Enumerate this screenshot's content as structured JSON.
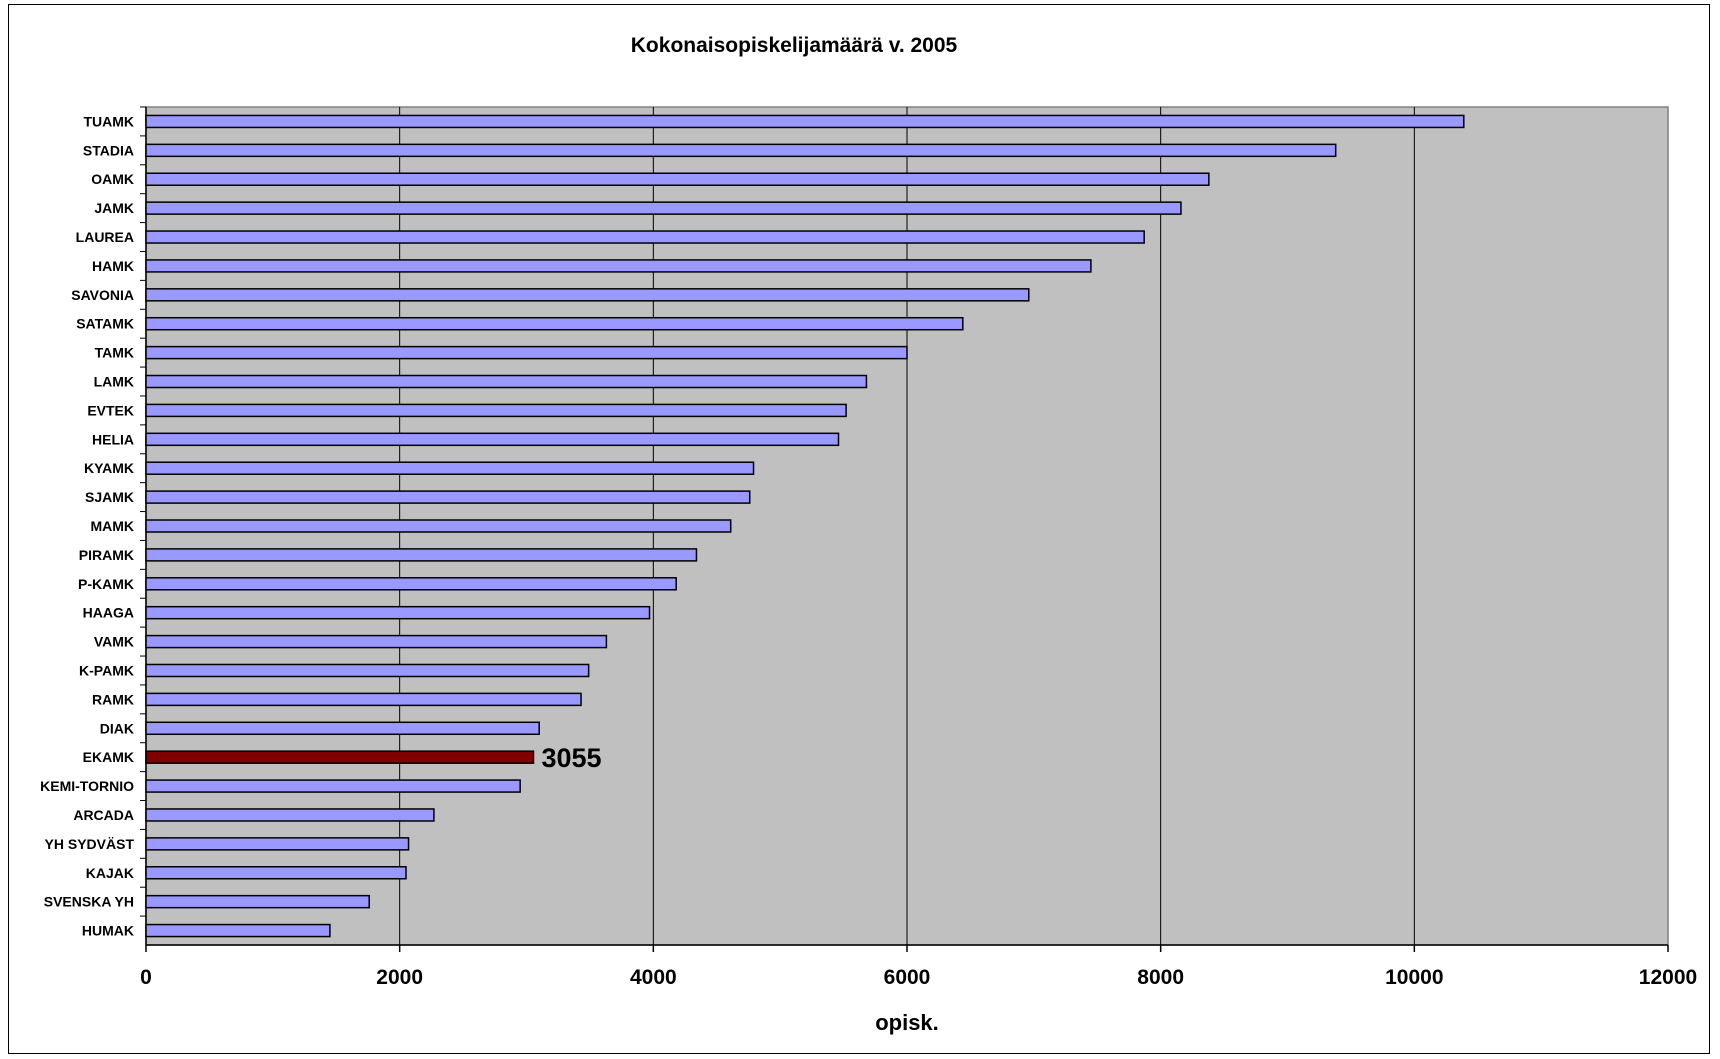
{
  "chart_data": {
    "type": "bar",
    "orientation": "horizontal",
    "title": "Kokonaisopiskelijamäärä v. 2005",
    "xlabel": "opisk.",
    "ylabel": "",
    "xlim": [
      0,
      12000
    ],
    "xticks": [
      "0",
      "2000",
      "4000",
      "6000",
      "8000",
      "10000",
      "12000"
    ],
    "grid": "vertical",
    "plot_background": "#c0c0c0",
    "bar_color": "#9999ff",
    "highlight_color": "#800000",
    "highlight_category": "EKAMK",
    "categories": [
      "TUAMK",
      "STADIA",
      "OAMK",
      "JAMK",
      "LAUREA",
      "HAMK",
      "SAVONIA",
      "SATAMK",
      "TAMK",
      "LAMK",
      "EVTEK",
      "HELIA",
      "KYAMK",
      "SJAMK",
      "MAMK",
      "PIRAMK",
      "P-KAMK",
      "HAAGA",
      "VAMK",
      "K-PAMK",
      "RAMK",
      "DIAK",
      "EKAMK",
      "KEMI-TORNIO",
      "ARCADA",
      "YH SYDVÄST",
      "KAJAK",
      "SVENSKA YH",
      "HUMAK"
    ],
    "values": [
      10390,
      9380,
      8380,
      8160,
      7870,
      7450,
      6960,
      6440,
      6000,
      5680,
      5520,
      5460,
      4790,
      4760,
      4610,
      4340,
      4180,
      3970,
      3630,
      3490,
      3430,
      3100,
      3055,
      2950,
      2270,
      2070,
      2050,
      1760,
      1450
    ],
    "data_labels": [
      {
        "category": "EKAMK",
        "text": "3055"
      }
    ]
  }
}
